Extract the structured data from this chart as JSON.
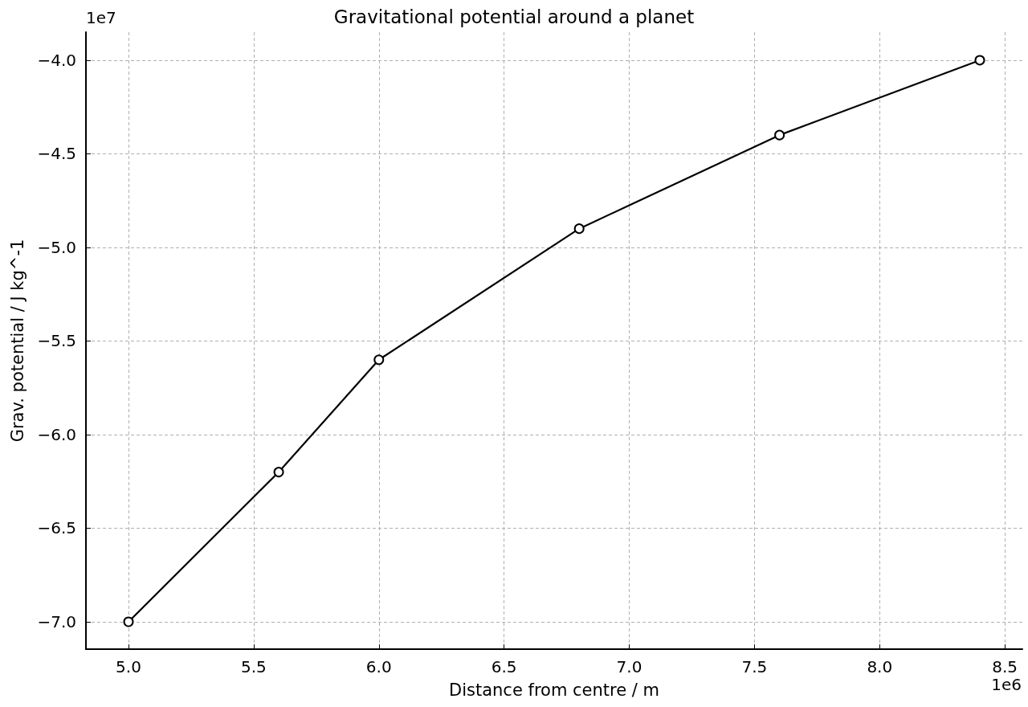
{
  "chart_data": {
    "type": "line",
    "title": "Gravitational potential around a planet",
    "xlabel": "Distance from centre / m",
    "ylabel": "Grav. potential / J kg^-1",
    "x": [
      5.0,
      5.6,
      6.0,
      6.8,
      7.6,
      8.4
    ],
    "series": [
      {
        "color": "#000000",
        "values": [
          -7.0,
          -6.2,
          -5.6,
          -4.9,
          -4.4,
          -4.0
        ]
      }
    ],
    "xlim": [
      4.83,
      8.57
    ],
    "xticks": [
      {
        "value": 5,
        "label": "5.0"
      },
      {
        "value": 5.5,
        "label": "5.5"
      },
      {
        "value": 6,
        "label": "6.0"
      },
      {
        "value": 6.5,
        "label": "6.5"
      },
      {
        "value": 7,
        "label": "7.0"
      },
      {
        "value": 7.5,
        "label": "7.5"
      },
      {
        "value": 8,
        "label": "8.0"
      },
      {
        "value": 8.5,
        "label": "8.5"
      }
    ],
    "ylim": [
      -7.146,
      -3.85
    ],
    "yticks": [
      {
        "value": -7,
        "label": "−7.0"
      },
      {
        "value": -6.5,
        "label": "−6.5"
      },
      {
        "value": -6,
        "label": "−6.0"
      },
      {
        "value": -5.5,
        "label": "−5.5"
      },
      {
        "value": -5,
        "label": "−5.0"
      },
      {
        "value": -4.5,
        "label": "−4.5"
      },
      {
        "value": -4,
        "label": "−4.0"
      }
    ],
    "annotations": [
      "1e7",
      "1e6"
    ],
    "grid": true,
    "marker": "circle",
    "line_style": "solid"
  }
}
